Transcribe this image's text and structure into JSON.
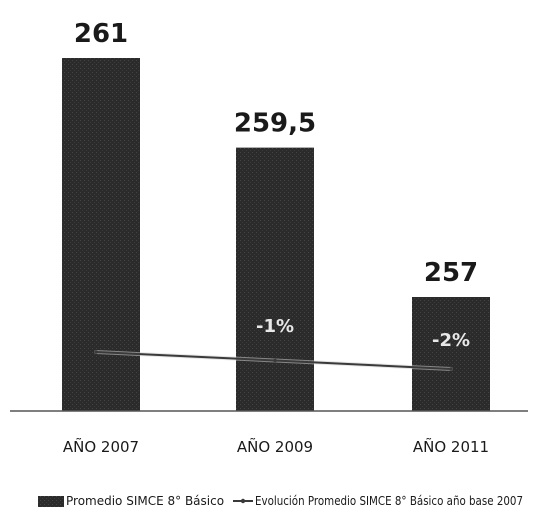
{
  "chart_data": {
    "type": "bar",
    "categories": [
      "AÑO 2007",
      "AÑO 2009",
      "AÑO 2011"
    ],
    "series": [
      {
        "name": "Promedio SIMCE 8° Básico",
        "type": "bar",
        "values": [
          261,
          259.5,
          257
        ],
        "value_labels": [
          "261",
          "259,5",
          "257"
        ]
      },
      {
        "name": "Evolución Promedio SIMCE 8° Básico año base 2007",
        "type": "line",
        "values": [
          0,
          -1,
          -2
        ],
        "point_labels": [
          "",
          "-1%",
          "-2%"
        ]
      }
    ],
    "grid": false,
    "legend_position": "bottom",
    "colors": {
      "bar": "#2a2a2a",
      "line": "#3a3a3a",
      "line_highlight": "#cfcfcf",
      "axis": "#555555"
    }
  }
}
